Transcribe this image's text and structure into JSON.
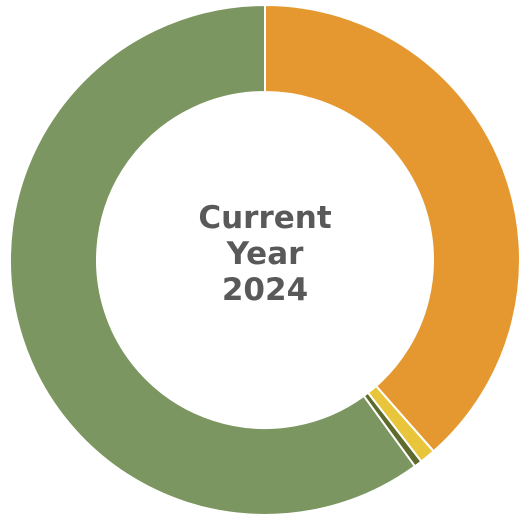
{
  "chart_data": {
    "type": "donut",
    "center_label": "Current Year 2024",
    "values": [
      38.5,
      1,
      0.5,
      60
    ],
    "colors": [
      "#e5982f",
      "#e8c53a",
      "#5e6b2c",
      "#7b9660"
    ]
  }
}
